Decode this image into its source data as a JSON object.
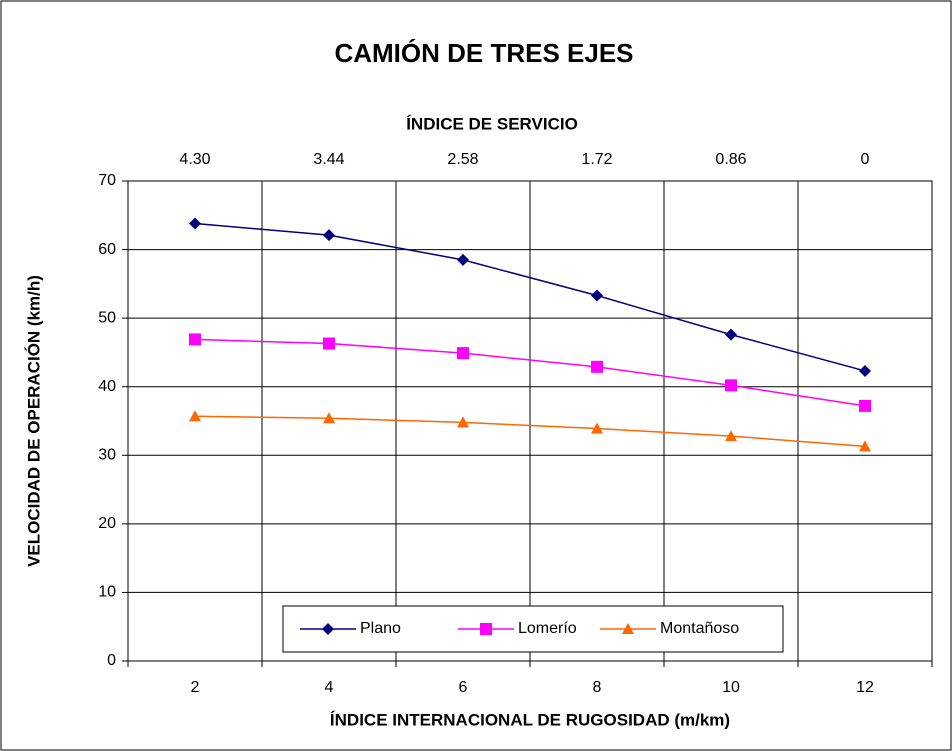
{
  "chart_data": {
    "type": "line",
    "title": "CAMIÓN DE TRES EJES",
    "top_axis_label": "ÍNDICE DE SERVICIO",
    "top_categories": [
      "4.30",
      "3.44",
      "2.58",
      "1.72",
      "0.86",
      "0"
    ],
    "x_label": "ÍNDICE INTERNACIONAL  DE RUGOSIDAD (m/km)",
    "y_label": "VELOCIDAD DE OPERACIÓN (km/h)",
    "categories": [
      "2",
      "4",
      "6",
      "8",
      "10",
      "12"
    ],
    "series": [
      {
        "name": "Plano",
        "color": "#000080",
        "marker": "diamond",
        "values": [
          63.8,
          62.1,
          58.5,
          53.3,
          47.6,
          42.3
        ]
      },
      {
        "name": "Lomerío",
        "color": "#ff00ff",
        "marker": "square",
        "values": [
          46.9,
          46.3,
          44.9,
          42.9,
          40.2,
          37.2
        ]
      },
      {
        "name": "Montañoso",
        "color": "#ff6600",
        "marker": "triangle",
        "values": [
          35.7,
          35.4,
          34.8,
          33.9,
          32.8,
          31.3
        ]
      }
    ],
    "ylim": [
      0,
      70
    ],
    "yticks": [
      0,
      10,
      20,
      30,
      40,
      50,
      60,
      70
    ],
    "grid": true,
    "legend": "bottom"
  }
}
